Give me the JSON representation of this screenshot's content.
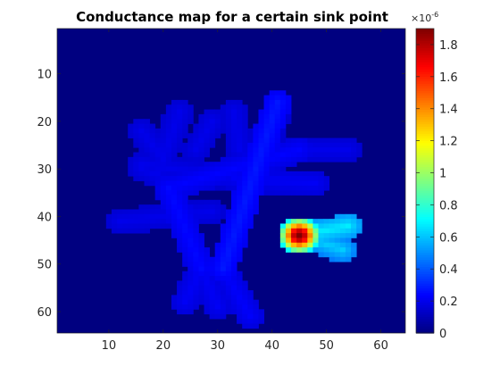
{
  "chart_data": {
    "type": "heatmap",
    "title": "Conductance map for a certain sink point",
    "xlabel": "",
    "ylabel": "",
    "x_range": [
      0.5,
      64.5
    ],
    "y_range": [
      0.5,
      64.5
    ],
    "y_reversed": true,
    "x_ticks": [
      10,
      20,
      30,
      40,
      50,
      60
    ],
    "y_ticks": [
      10,
      20,
      30,
      40,
      50,
      60
    ],
    "grid": false,
    "colormap": "jet",
    "colorbar": {
      "range": [
        0,
        1.9
      ],
      "ticks": [
        0,
        0.2,
        0.4,
        0.6,
        0.8,
        1,
        1.2,
        1.4,
        1.6,
        1.8
      ],
      "tick_labels": [
        "0",
        "0.2",
        "0.4",
        "0.6",
        "0.8",
        "1",
        "1.2",
        "1.4",
        "1.6",
        "1.8"
      ],
      "exponent_label": "×10",
      "exponent": "-6"
    },
    "background_value": 0,
    "structure": {
      "branches": [
        {
          "from": [
            21,
            34
          ],
          "to": [
            27,
            51
          ]
        },
        {
          "from": [
            27,
            51
          ],
          "to": [
            30,
            59
          ]
        },
        {
          "from": [
            27,
            51
          ],
          "to": [
            24,
            58
          ]
        },
        {
          "from": [
            41,
            16
          ],
          "to": [
            31,
            51
          ]
        },
        {
          "from": [
            31,
            51
          ],
          "to": [
            36,
            61
          ]
        },
        {
          "from": [
            21,
            34
          ],
          "to": [
            45,
            26
          ]
        },
        {
          "from": [
            45,
            26
          ],
          "to": [
            54,
            26
          ]
        },
        {
          "from": [
            26,
            26
          ],
          "to": [
            29,
            20
          ]
        },
        {
          "from": [
            34,
            26
          ],
          "to": [
            33,
            18
          ]
        },
        {
          "from": [
            39,
            26
          ],
          "to": [
            41,
            18
          ]
        },
        {
          "from": [
            19,
            31
          ],
          "to": [
            23,
            18
          ]
        },
        {
          "from": [
            20,
            28
          ],
          "to": [
            16,
            22
          ]
        },
        {
          "from": [
            16,
            30
          ],
          "to": [
            22,
            33
          ]
        },
        {
          "from": [
            12,
            41
          ],
          "to": [
            29,
            39
          ]
        },
        {
          "from": [
            16,
            29
          ],
          "to": [
            33,
            32
          ]
        },
        {
          "from": [
            33,
            32
          ],
          "to": [
            48,
            33
          ]
        },
        {
          "from": [
            45,
            44
          ],
          "to": [
            54,
            42
          ]
        },
        {
          "from": [
            45,
            44
          ],
          "to": [
            53,
            47
          ]
        }
      ],
      "values": [
        0.25,
        0.22,
        0.22,
        0.28,
        0.23,
        0.24,
        0.2,
        0.2,
        0.2,
        0.2,
        0.2,
        0.2,
        0.2,
        0.2,
        0.2,
        0.22,
        0.68,
        0.62
      ],
      "sink_point": {
        "x": 45,
        "y": 44,
        "peak": 1.9,
        "falloff": 2.6
      }
    }
  }
}
